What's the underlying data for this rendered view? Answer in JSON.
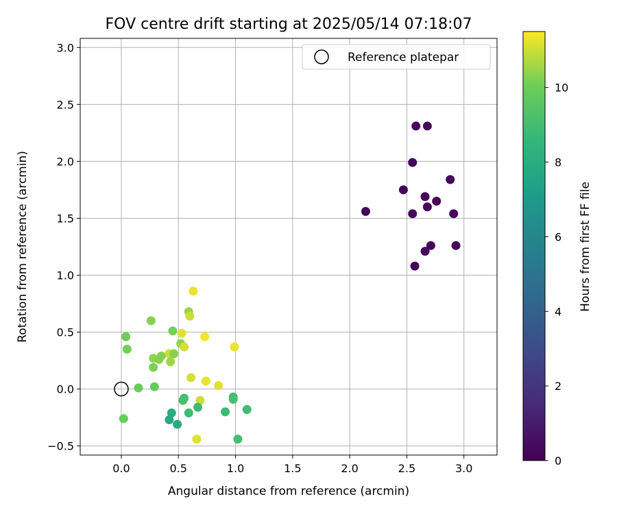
{
  "chart_data": {
    "type": "scatter",
    "title": "FOV centre drift starting at 2025/05/14 07:18:07",
    "xlabel": "Angular distance from reference (arcmin)",
    "ylabel": "Rotation from reference (arcmin)",
    "xlim": [
      -0.36,
      3.29
    ],
    "ylim": [
      -0.58,
      3.08
    ],
    "xticks": [
      "0.0",
      "0.5",
      "1.0",
      "1.5",
      "2.0",
      "2.5",
      "3.0"
    ],
    "xtick_values": [
      0,
      0.5,
      1.0,
      1.5,
      2.0,
      2.5,
      3.0
    ],
    "yticks": [
      "−0.5",
      "0.0",
      "0.5",
      "1.0",
      "1.5",
      "2.0",
      "2.5",
      "3.0"
    ],
    "ytick_values": [
      -0.5,
      0,
      0.5,
      1.0,
      1.5,
      2.0,
      2.5,
      3.0
    ],
    "grid": true,
    "legend_position": "top-right",
    "reference": {
      "name": "Reference platepar",
      "x": 0,
      "y": 0
    },
    "colorbar": {
      "label": "Hours from first FF file",
      "min": 0,
      "max": 11.5,
      "ticks": [
        "0",
        "2",
        "4",
        "6",
        "8",
        "10"
      ],
      "tick_values": [
        0,
        2,
        4,
        6,
        8,
        10
      ],
      "colormap": "viridis"
    },
    "points": [
      {
        "x": 2.58,
        "y": 2.31,
        "h": 0.2
      },
      {
        "x": 2.68,
        "y": 2.31,
        "h": 0.3
      },
      {
        "x": 2.55,
        "y": 1.99,
        "h": 0.2
      },
      {
        "x": 2.88,
        "y": 1.84,
        "h": 0.2
      },
      {
        "x": 2.47,
        "y": 1.75,
        "h": 0.2
      },
      {
        "x": 2.66,
        "y": 1.69,
        "h": 0.3
      },
      {
        "x": 2.76,
        "y": 1.65,
        "h": 0.2
      },
      {
        "x": 2.68,
        "y": 1.6,
        "h": 0.3
      },
      {
        "x": 2.14,
        "y": 1.56,
        "h": 0.2
      },
      {
        "x": 2.55,
        "y": 1.54,
        "h": 0.2
      },
      {
        "x": 2.91,
        "y": 1.54,
        "h": 0.3
      },
      {
        "x": 2.71,
        "y": 1.26,
        "h": 0.2
      },
      {
        "x": 2.93,
        "y": 1.26,
        "h": 0.3
      },
      {
        "x": 2.66,
        "y": 1.21,
        "h": 0.3
      },
      {
        "x": 2.57,
        "y": 1.08,
        "h": 0.2
      },
      {
        "x": 0.63,
        "y": 0.86,
        "h": 11.3
      },
      {
        "x": 0.59,
        "y": 0.68,
        "h": 10.5
      },
      {
        "x": 0.6,
        "y": 0.64,
        "h": 11.0
      },
      {
        "x": 0.26,
        "y": 0.6,
        "h": 10.3
      },
      {
        "x": 0.45,
        "y": 0.51,
        "h": 10.1
      },
      {
        "x": 0.53,
        "y": 0.49,
        "h": 11.2
      },
      {
        "x": 0.73,
        "y": 0.46,
        "h": 11.4
      },
      {
        "x": 0.04,
        "y": 0.46,
        "h": 10.0
      },
      {
        "x": 0.52,
        "y": 0.4,
        "h": 10.4
      },
      {
        "x": 0.55,
        "y": 0.37,
        "h": 11.1
      },
      {
        "x": 0.99,
        "y": 0.37,
        "h": 11.3
      },
      {
        "x": 0.05,
        "y": 0.35,
        "h": 10.1
      },
      {
        "x": 0.42,
        "y": 0.31,
        "h": 11.0
      },
      {
        "x": 0.46,
        "y": 0.31,
        "h": 10.3
      },
      {
        "x": 0.35,
        "y": 0.29,
        "h": 10.3
      },
      {
        "x": 0.28,
        "y": 0.27,
        "h": 10.4
      },
      {
        "x": 0.33,
        "y": 0.26,
        "h": 10.3
      },
      {
        "x": 0.43,
        "y": 0.24,
        "h": 10.5
      },
      {
        "x": 0.28,
        "y": 0.19,
        "h": 10.2
      },
      {
        "x": 0.61,
        "y": 0.1,
        "h": 11.1
      },
      {
        "x": 0.74,
        "y": 0.07,
        "h": 11.3
      },
      {
        "x": 0.85,
        "y": 0.03,
        "h": 11.2
      },
      {
        "x": 0.29,
        "y": 0.02,
        "h": 9.8
      },
      {
        "x": 0.15,
        "y": 0.01,
        "h": 9.9
      },
      {
        "x": 0.55,
        "y": -0.08,
        "h": 9.0
      },
      {
        "x": 0.54,
        "y": -0.1,
        "h": 9.1
      },
      {
        "x": 0.98,
        "y": -0.07,
        "h": 9.0
      },
      {
        "x": 0.98,
        "y": -0.09,
        "h": 9.1
      },
      {
        "x": 0.69,
        "y": -0.1,
        "h": 11.0
      },
      {
        "x": 0.67,
        "y": -0.16,
        "h": 8.8
      },
      {
        "x": 1.1,
        "y": -0.18,
        "h": 8.9
      },
      {
        "x": 0.91,
        "y": -0.2,
        "h": 8.8
      },
      {
        "x": 0.59,
        "y": -0.21,
        "h": 8.9
      },
      {
        "x": 0.44,
        "y": -0.21,
        "h": 8.0
      },
      {
        "x": 0.02,
        "y": -0.26,
        "h": 9.9
      },
      {
        "x": 0.42,
        "y": -0.27,
        "h": 7.8
      },
      {
        "x": 0.49,
        "y": -0.31,
        "h": 7.9
      },
      {
        "x": 0.66,
        "y": -0.44,
        "h": 11.2
      },
      {
        "x": 1.02,
        "y": -0.44,
        "h": 9.0
      }
    ]
  }
}
